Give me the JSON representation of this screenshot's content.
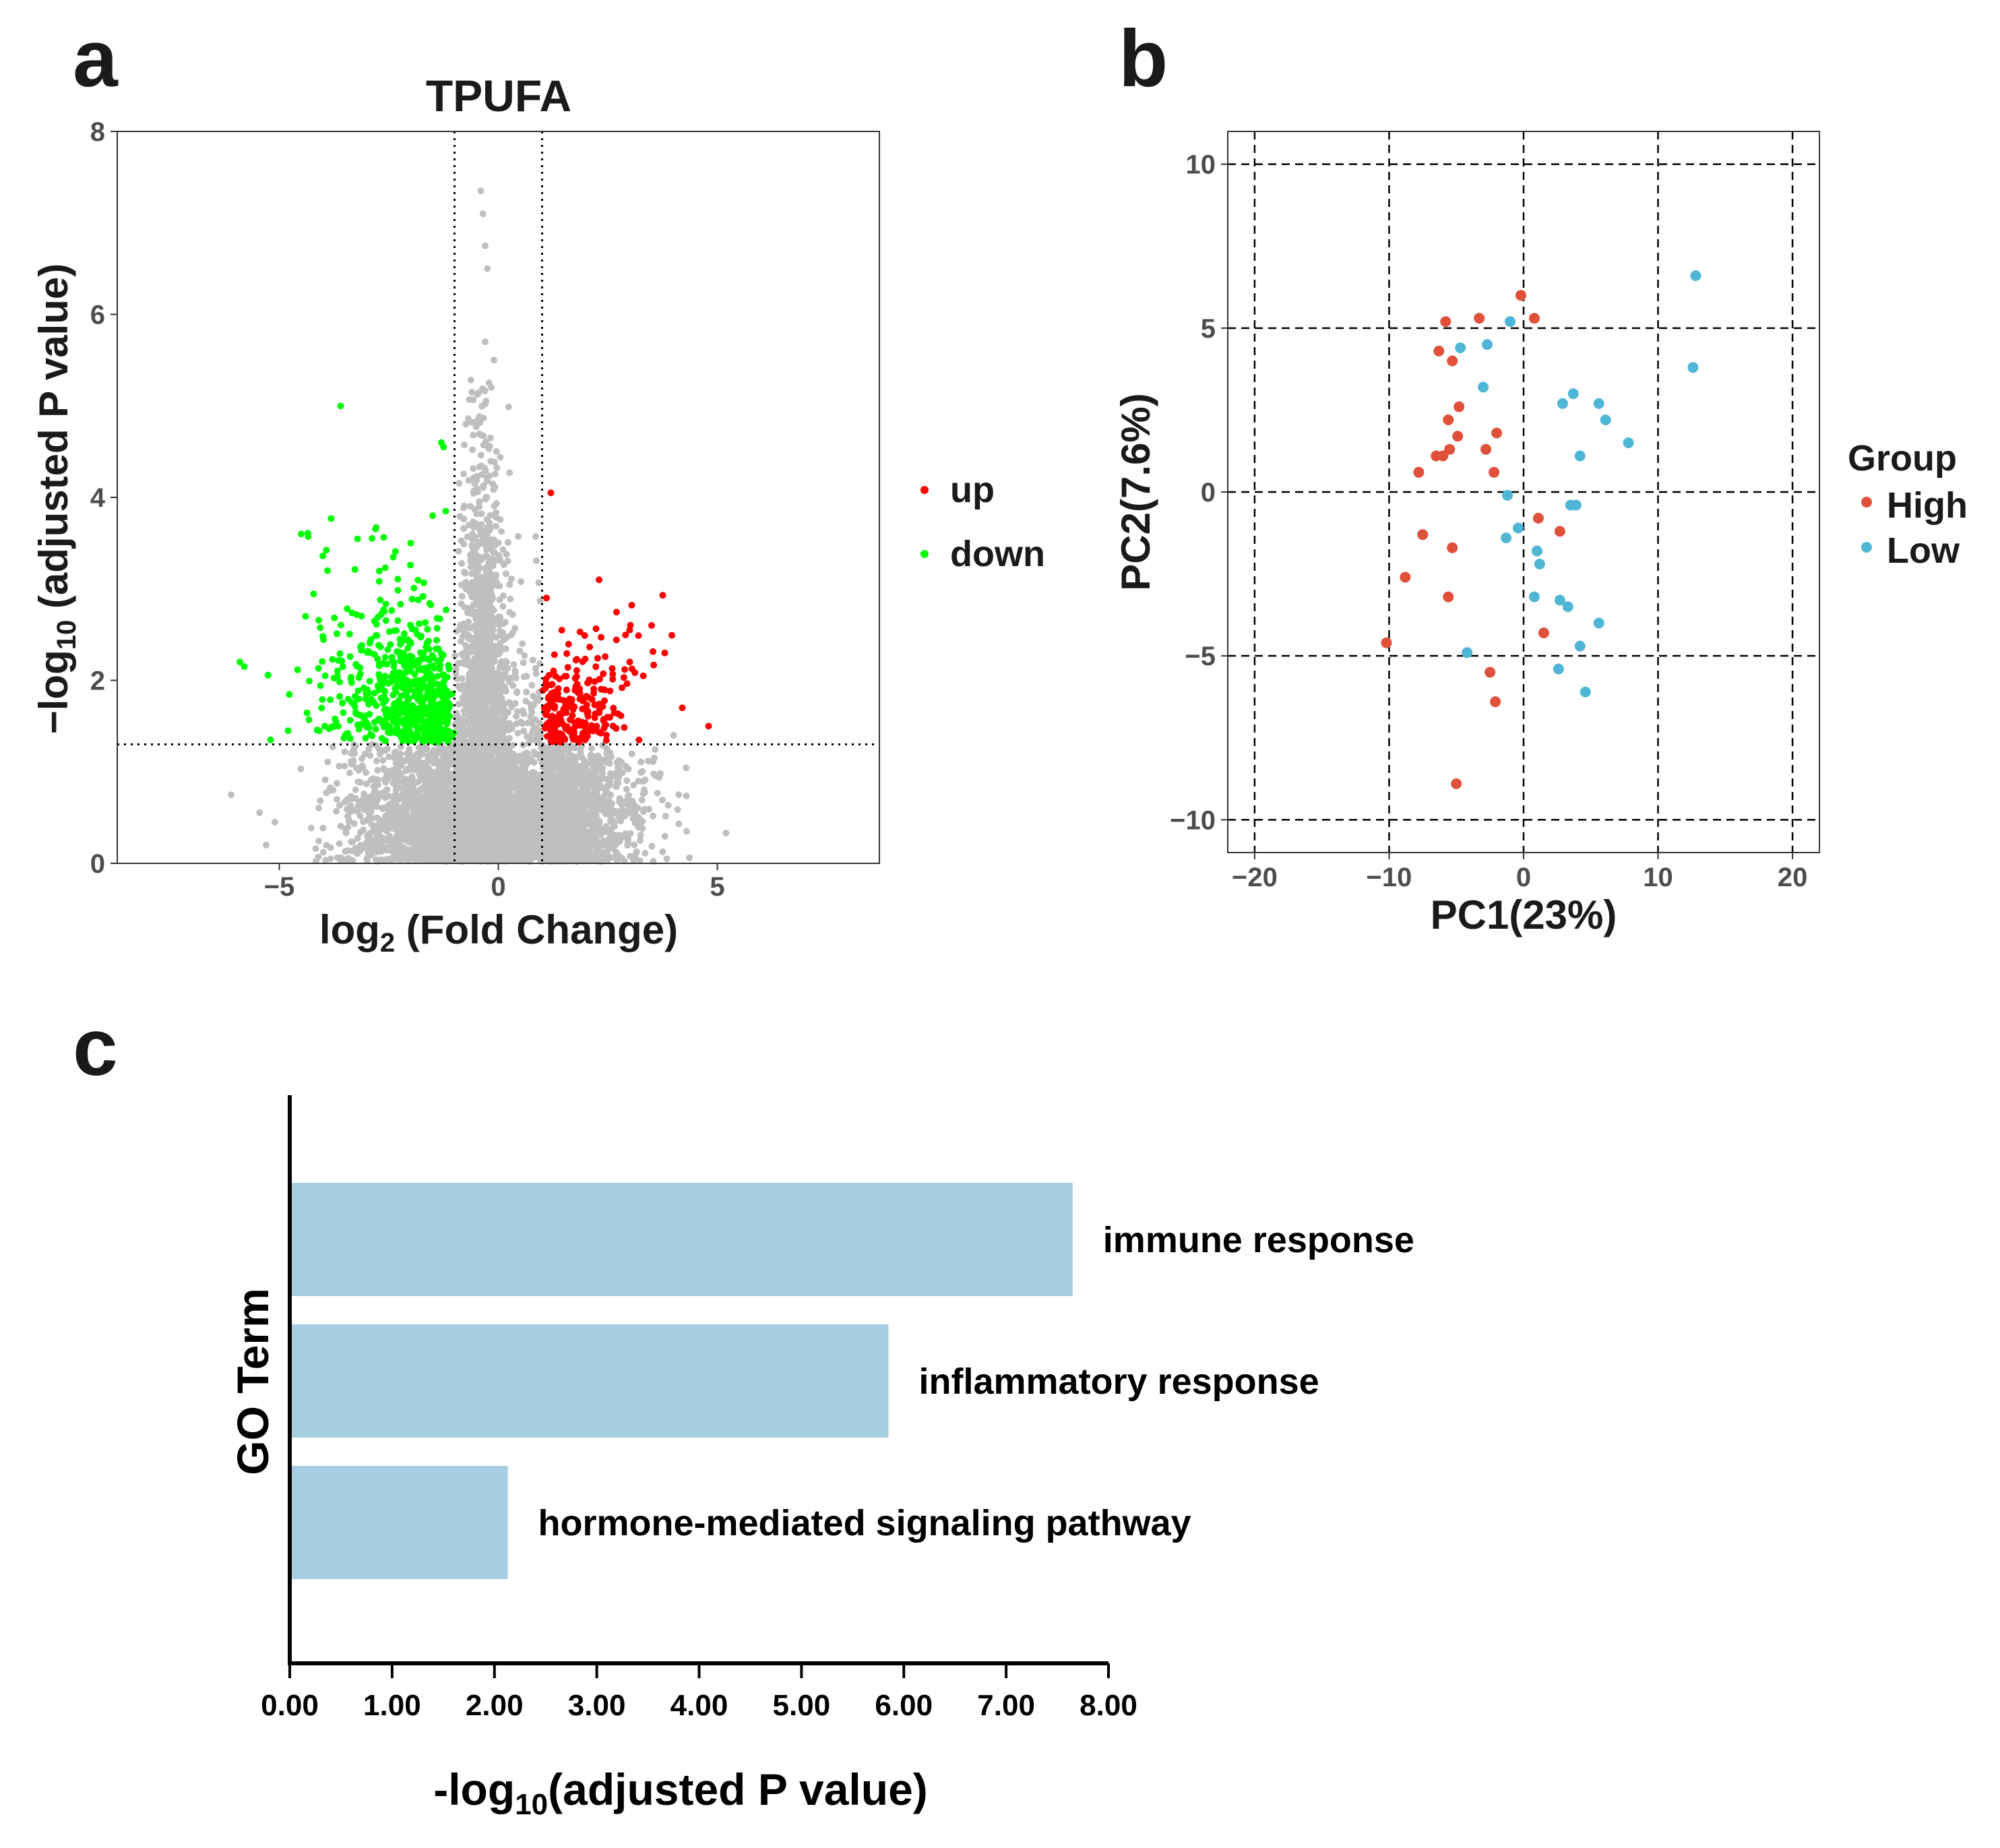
{
  "colors": {
    "up": "#ff0000",
    "down": "#00ff00",
    "ns": "#bfbfbf",
    "high": "#e0503a",
    "low": "#4fb6d6",
    "bar": "#a6cde1"
  },
  "chart_data": [
    {
      "panel": "a",
      "type": "scatter",
      "subtype": "volcano",
      "title": "TPUFA",
      "xlabel_main": "log",
      "xlabel_sub": "2",
      "xlabel_rest": " (Fold Change)",
      "ylabel_main": "−log",
      "ylabel_sub": "10",
      "ylabel_rest": " (adjusted P value)",
      "xlim": [
        -8.7,
        8.7
      ],
      "ylim": [
        0,
        8
      ],
      "xticks": [
        -5,
        0,
        5
      ],
      "xtick_labels": [
        "−5",
        "0",
        "5"
      ],
      "yticks": [
        0,
        2,
        4,
        6,
        8
      ],
      "ytick_labels": [
        "0",
        "2",
        "4",
        "6",
        "8"
      ],
      "thresholds": {
        "log2fc": [
          -1,
          1
        ],
        "neg_log10_p": 1.3
      },
      "legend": [
        "up",
        "down"
      ],
      "highlight_points": {
        "down": [
          [
            -5.9,
            2.2
          ],
          [
            -5.8,
            2.15
          ],
          [
            -4.8,
            1.45
          ],
          [
            -5.2,
            1.35
          ],
          [
            -4.5,
            3.6
          ],
          [
            -4.4,
            2.7
          ],
          [
            -3.9,
            3.2
          ],
          [
            -3.6,
            5.0
          ],
          [
            -1.3,
            4.6
          ],
          [
            -1.25,
            4.55
          ],
          [
            -2.0,
            3.5
          ],
          [
            -1.5,
            3.8
          ],
          [
            -1.2,
            3.85
          ]
        ],
        "up": [
          [
            1.2,
            4.05
          ],
          [
            2.3,
            3.1
          ],
          [
            3.5,
            2.6
          ],
          [
            3.8,
            2.3
          ],
          [
            4.2,
            1.7
          ],
          [
            4.8,
            1.5
          ],
          [
            1.1,
            2.9
          ],
          [
            3.0,
            2.2
          ]
        ],
        "ns": [
          [
            -0.4,
            7.35
          ],
          [
            -0.35,
            7.1
          ],
          [
            -0.3,
            6.75
          ],
          [
            -0.25,
            6.5
          ],
          [
            -0.3,
            5.7
          ],
          [
            -0.1,
            5.5
          ],
          [
            -6.1,
            0.75
          ],
          [
            -5.3,
            0.2
          ],
          [
            -5.1,
            0.45
          ],
          [
            4.3,
            0.35
          ],
          [
            4.0,
            1.4
          ]
        ]
      },
      "cloud_counts": {
        "down": 650,
        "up": 240,
        "ns": 6500
      }
    },
    {
      "panel": "b",
      "type": "scatter",
      "subtype": "pca",
      "xlabel": "PC1(23%)",
      "ylabel": "PC2(7.6%)",
      "xlim": [
        -22,
        22
      ],
      "ylim": [
        -11,
        11
      ],
      "xticks": [
        -20,
        -10,
        0,
        10,
        20
      ],
      "xtick_labels": [
        "−20",
        "−10",
        "0",
        "10",
        "20"
      ],
      "yticks": [
        -10,
        -5,
        0,
        5,
        10
      ],
      "ytick_labels": [
        "−10",
        "−5",
        "0",
        "5",
        "10"
      ],
      "legend_title": "Group",
      "series": [
        {
          "name": "High",
          "points": [
            [
              -5.8,
              5.2
            ],
            [
              -3.3,
              5.3
            ],
            [
              -0.2,
              6.0
            ],
            [
              0.8,
              5.3
            ],
            [
              -6.3,
              4.3
            ],
            [
              -5.3,
              4.0
            ],
            [
              -4.8,
              2.6
            ],
            [
              -5.6,
              2.2
            ],
            [
              -4.9,
              1.7
            ],
            [
              -2.0,
              1.8
            ],
            [
              -5.5,
              1.3
            ],
            [
              -6.5,
              1.1
            ],
            [
              -6.0,
              1.1
            ],
            [
              -2.8,
              1.3
            ],
            [
              -7.8,
              0.6
            ],
            [
              -2.2,
              0.6
            ],
            [
              1.1,
              -0.8
            ],
            [
              2.7,
              -1.2
            ],
            [
              -7.5,
              -1.3
            ],
            [
              -5.3,
              -1.7
            ],
            [
              -8.8,
              -2.6
            ],
            [
              -5.6,
              -3.2
            ],
            [
              1.5,
              -4.3
            ],
            [
              -10.2,
              -4.6
            ],
            [
              -2.5,
              -5.5
            ],
            [
              -2.1,
              -6.4
            ],
            [
              -5.0,
              -8.9
            ]
          ]
        },
        {
          "name": "Low",
          "points": [
            [
              12.8,
              6.6
            ],
            [
              -1.0,
              5.2
            ],
            [
              -2.7,
              4.5
            ],
            [
              -4.7,
              4.4
            ],
            [
              12.6,
              3.8
            ],
            [
              -3.0,
              3.2
            ],
            [
              3.7,
              3.0
            ],
            [
              2.9,
              2.7
            ],
            [
              5.6,
              2.7
            ],
            [
              6.1,
              2.2
            ],
            [
              7.8,
              1.5
            ],
            [
              4.2,
              1.1
            ],
            [
              -1.2,
              -0.1
            ],
            [
              3.5,
              -0.4
            ],
            [
              3.9,
              -0.4
            ],
            [
              -0.4,
              -1.1
            ],
            [
              -1.3,
              -1.4
            ],
            [
              1.0,
              -1.8
            ],
            [
              1.2,
              -2.2
            ],
            [
              0.8,
              -3.2
            ],
            [
              2.7,
              -3.3
            ],
            [
              3.3,
              -3.5
            ],
            [
              5.6,
              -4.0
            ],
            [
              -4.2,
              -4.9
            ],
            [
              4.2,
              -4.7
            ],
            [
              2.6,
              -5.4
            ],
            [
              4.6,
              -6.1
            ]
          ]
        }
      ]
    },
    {
      "panel": "c",
      "type": "bar",
      "orientation": "horizontal",
      "ylabel": "GO Term",
      "xlabel_main": "-log",
      "xlabel_sub": "10",
      "xlabel_rest": "(adjusted P value)",
      "xlim": [
        0,
        8
      ],
      "xticks": [
        0,
        1,
        2,
        3,
        4,
        5,
        6,
        7,
        8
      ],
      "xtick_labels": [
        "0.00",
        "1.00",
        "2.00",
        "3.00",
        "4.00",
        "5.00",
        "6.00",
        "7.00",
        "8.00"
      ],
      "categories": [
        "immune response",
        "inflammatory response",
        "hormone-mediated signaling pathway"
      ],
      "values": [
        7.65,
        5.85,
        2.13
      ]
    }
  ]
}
